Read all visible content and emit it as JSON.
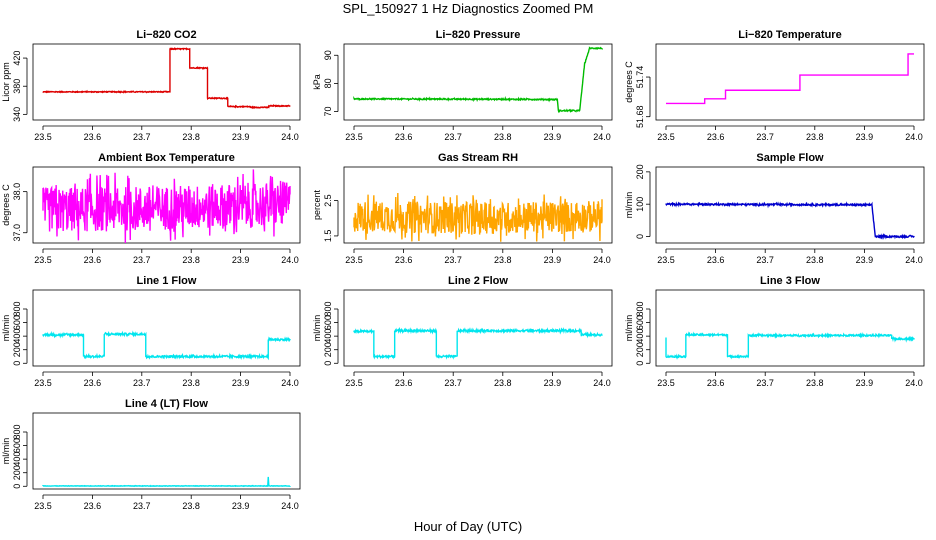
{
  "figure": {
    "title": "SPL_150927  1 Hz Diagnostics Zoomed PM",
    "xlabel": "Hour of Day (UTC)"
  },
  "chart_data": [
    {
      "type": "line",
      "title": "Li−820 CO2",
      "ylabel": "Licor ppm",
      "color": "#dd0000",
      "xlim": [
        23.5,
        24.0
      ],
      "ylim": [
        332,
        440
      ],
      "xticks": [
        23.5,
        23.6,
        23.7,
        23.8,
        23.9,
        24.0
      ],
      "xtick_labels": [
        "23.5",
        "23.6",
        "23.7",
        "23.8",
        "23.9",
        "24.0"
      ],
      "yticks": [
        340,
        380,
        420
      ],
      "ytick_labels": [
        "340",
        "380",
        "420"
      ],
      "noise": 0.6,
      "series": [
        {
          "name": "CO2",
          "x": [
            23.5,
            23.757,
            23.757,
            23.797,
            23.797,
            23.833,
            23.833,
            23.874,
            23.874,
            23.92,
            23.92,
            23.957,
            23.957,
            24.0
          ],
          "y": [
            372,
            372,
            433,
            433,
            406,
            406,
            363,
            363,
            351,
            351,
            350,
            350,
            352,
            352
          ]
        }
      ]
    },
    {
      "type": "line",
      "title": "Li−820 Pressure",
      "ylabel": "kPa",
      "color": "#00bb00",
      "xlim": [
        23.5,
        24.0
      ],
      "ylim": [
        67,
        94
      ],
      "xticks": [
        23.5,
        23.6,
        23.7,
        23.8,
        23.9,
        24.0
      ],
      "xtick_labels": [
        "23.5",
        "23.6",
        "23.7",
        "23.8",
        "23.9",
        "24.0"
      ],
      "yticks": [
        70,
        80,
        90
      ],
      "ytick_labels": [
        "70",
        "80",
        "90"
      ],
      "noise": 0.2,
      "series": [
        {
          "name": "Pressure",
          "x": [
            23.5,
            23.74,
            23.91,
            23.912,
            23.955,
            23.965,
            23.975,
            24.0
          ],
          "y": [
            74.5,
            74.4,
            74.3,
            70.3,
            70.3,
            87,
            92.5,
            92.5
          ]
        }
      ]
    },
    {
      "type": "line",
      "title": "Li−820 Temperature",
      "ylabel": "degrees C",
      "color": "#ff00ff",
      "xlim": [
        23.5,
        24.0
      ],
      "ylim": [
        51.675,
        51.79
      ],
      "xticks": [
        23.5,
        23.6,
        23.7,
        23.8,
        23.9,
        24.0
      ],
      "xtick_labels": [
        "23.5",
        "23.6",
        "23.7",
        "23.8",
        "23.9",
        "24.0"
      ],
      "yticks": [
        51.68,
        51.74
      ],
      "ytick_labels": [
        "51.68",
        "51.74"
      ],
      "noise": 0.0,
      "series": [
        {
          "name": "Temperature",
          "x": [
            23.5,
            23.578,
            23.578,
            23.62,
            23.62,
            23.77,
            23.77,
            23.988,
            23.988,
            24.0
          ],
          "y": [
            51.7,
            51.7,
            51.707,
            51.707,
            51.72,
            51.72,
            51.743,
            51.743,
            51.775,
            51.775
          ]
        }
      ]
    },
    {
      "type": "line",
      "title": "Ambient Box Temperature",
      "ylabel": "degrees C",
      "color": "#ff00ff",
      "xlim": [
        23.5,
        24.0
      ],
      "ylim": [
        36.75,
        38.6
      ],
      "xticks": [
        23.5,
        23.6,
        23.7,
        23.8,
        23.9,
        24.0
      ],
      "xtick_labels": [
        "23.5",
        "23.6",
        "23.7",
        "23.8",
        "23.9",
        "24.0"
      ],
      "yticks": [
        37.0,
        38.0
      ],
      "ytick_labels": [
        "37.0",
        "38.0"
      ],
      "noise": 0.55,
      "series": [
        {
          "name": "Ambient",
          "x": [
            23.5,
            23.75,
            24.0
          ],
          "y": [
            37.55,
            37.6,
            37.7
          ]
        }
      ]
    },
    {
      "type": "line",
      "title": "Gas Stream RH",
      "ylabel": "percent",
      "color": "#ffa500",
      "xlim": [
        23.5,
        24.0
      ],
      "ylim": [
        1.3,
        3.45
      ],
      "xticks": [
        23.5,
        23.6,
        23.7,
        23.8,
        23.9,
        24.0
      ],
      "xtick_labels": [
        "23.5",
        "23.6",
        "23.7",
        "23.8",
        "23.9",
        "24.0"
      ],
      "yticks": [
        1.5,
        2.5
      ],
      "ytick_labels": [
        "1.5",
        "2.5"
      ],
      "noise": 0.45,
      "series": [
        {
          "name": "RH",
          "x": [
            23.5,
            23.75,
            24.0
          ],
          "y": [
            2.05,
            2.0,
            2.05
          ]
        }
      ]
    },
    {
      "type": "line",
      "title": "Sample Flow",
      "ylabel": "ml/min",
      "color": "#0000cc",
      "xlim": [
        23.5,
        24.0
      ],
      "ylim": [
        -20,
        215
      ],
      "xticks": [
        23.5,
        23.6,
        23.7,
        23.8,
        23.9,
        24.0
      ],
      "xtick_labels": [
        "23.5",
        "23.6",
        "23.7",
        "23.8",
        "23.9",
        "24.0"
      ],
      "yticks": [
        0,
        100,
        200
      ],
      "ytick_labels": [
        "0",
        "100",
        "200"
      ],
      "noise": 2.5,
      "series": [
        {
          "name": "Flow",
          "x": [
            23.5,
            23.915,
            23.922,
            24.0
          ],
          "y": [
            100,
            98,
            0,
            0
          ]
        }
      ]
    },
    {
      "type": "line",
      "title": "Line 1 Flow",
      "ylabel": "ml/min",
      "color": "#00e5ee",
      "xlim": [
        23.5,
        24.0
      ],
      "ylim": [
        -40,
        1080
      ],
      "xticks": [
        23.5,
        23.6,
        23.7,
        23.8,
        23.9,
        24.0
      ],
      "xtick_labels": [
        "23.5",
        "23.6",
        "23.7",
        "23.8",
        "23.9",
        "24.0"
      ],
      "yticks": [
        0,
        200,
        400,
        600,
        800
      ],
      "ytick_labels": [
        "0",
        "200",
        "400",
        "600",
        "800"
      ],
      "noise": 15,
      "series": [
        {
          "name": "Line1",
          "x": [
            23.5,
            23.582,
            23.582,
            23.624,
            23.624,
            23.708,
            23.708,
            23.956,
            23.956,
            24.0
          ],
          "y": [
            420,
            420,
            100,
            100,
            430,
            430,
            100,
            100,
            350,
            350
          ]
        }
      ]
    },
    {
      "type": "line",
      "title": "Line 2 Flow",
      "ylabel": "ml/min",
      "color": "#00e5ee",
      "xlim": [
        23.5,
        24.0
      ],
      "ylim": [
        -40,
        1080
      ],
      "xticks": [
        23.5,
        23.6,
        23.7,
        23.8,
        23.9,
        24.0
      ],
      "xtick_labels": [
        "23.5",
        "23.6",
        "23.7",
        "23.8",
        "23.9",
        "24.0"
      ],
      "yticks": [
        0,
        200,
        400,
        600,
        800
      ],
      "ytick_labels": [
        "0",
        "200",
        "400",
        "600",
        "800"
      ],
      "noise": 15,
      "series": [
        {
          "name": "Line2",
          "x": [
            23.5,
            23.54,
            23.54,
            23.582,
            23.582,
            23.666,
            23.666,
            23.708,
            23.708,
            23.958,
            23.958,
            24.0
          ],
          "y": [
            470,
            470,
            100,
            100,
            480,
            480,
            100,
            100,
            480,
            480,
            420,
            420
          ]
        }
      ]
    },
    {
      "type": "line",
      "title": "Line 3 Flow",
      "ylabel": "ml/min",
      "color": "#00e5ee",
      "xlim": [
        23.5,
        24.0
      ],
      "ylim": [
        -40,
        1080
      ],
      "xticks": [
        23.5,
        23.6,
        23.7,
        23.8,
        23.9,
        24.0
      ],
      "xtick_labels": [
        "23.5",
        "23.6",
        "23.7",
        "23.8",
        "23.9",
        "24.0"
      ],
      "yticks": [
        0,
        200,
        400,
        600,
        800
      ],
      "ytick_labels": [
        "0",
        "200",
        "400",
        "600",
        "800"
      ],
      "noise": 12,
      "series": [
        {
          "name": "Line3",
          "x": [
            23.5,
            23.5,
            23.54,
            23.54,
            23.624,
            23.624,
            23.666,
            23.666,
            23.955,
            23.955,
            24.0
          ],
          "y": [
            380,
            100,
            100,
            420,
            420,
            100,
            100,
            410,
            410,
            360,
            360
          ]
        }
      ]
    },
    {
      "type": "line",
      "title": "Line 4 (LT) Flow",
      "ylabel": "ml/min",
      "color": "#00e5ee",
      "xlim": [
        23.5,
        24.0
      ],
      "ylim": [
        -40,
        1080
      ],
      "xticks": [
        23.5,
        23.6,
        23.7,
        23.8,
        23.9,
        24.0
      ],
      "xtick_labels": [
        "23.5",
        "23.6",
        "23.7",
        "23.8",
        "23.9",
        "24.0"
      ],
      "yticks": [
        0,
        200,
        400,
        600,
        800
      ],
      "ytick_labels": [
        "0",
        "200",
        "400",
        "600",
        "800"
      ],
      "noise": 3,
      "series": [
        {
          "name": "Line4",
          "x": [
            23.5,
            23.955,
            23.956,
            23.957,
            23.958,
            24.0
          ],
          "y": [
            5,
            5,
            140,
            20,
            5,
            5
          ]
        }
      ]
    }
  ]
}
